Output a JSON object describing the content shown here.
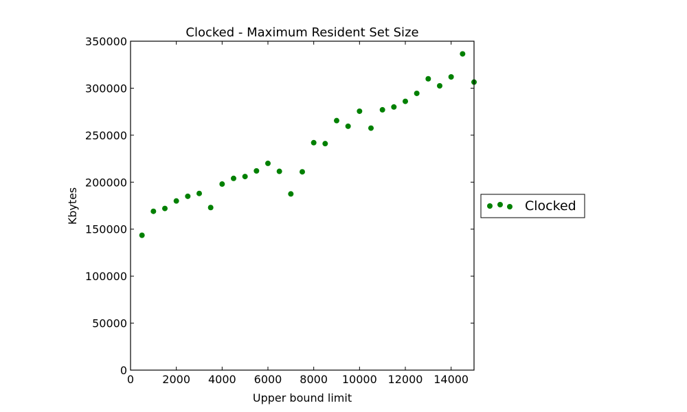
{
  "chart_data": {
    "type": "scatter",
    "title": "Clocked - Maximum Resident Set Size",
    "xlabel": "Upper bound limit",
    "ylabel": "Kbytes",
    "xlim": [
      0,
      15000
    ],
    "ylim": [
      0,
      350000
    ],
    "xticks": [
      0,
      2000,
      4000,
      6000,
      8000,
      10000,
      12000,
      14000
    ],
    "xtick_labels": [
      "0",
      "2000",
      "4000",
      "6000",
      "8000",
      "10000",
      "12000",
      "14000"
    ],
    "yticks": [
      0,
      50000,
      100000,
      150000,
      200000,
      250000,
      300000,
      350000
    ],
    "ytick_labels": [
      "0",
      "50000",
      "100000",
      "150000",
      "200000",
      "250000",
      "300000",
      "350000"
    ],
    "grid": false,
    "legend_position": "outside-right",
    "series": [
      {
        "name": "Clocked",
        "color": "#008000",
        "marker": "circle",
        "x": [
          500,
          1000,
          1500,
          2000,
          2500,
          3000,
          3500,
          4000,
          4500,
          5000,
          5500,
          6000,
          6500,
          7000,
          7500,
          8000,
          8500,
          9000,
          9500,
          10000,
          10500,
          11000,
          11500,
          12000,
          12500,
          13000,
          13500,
          14000,
          14500,
          15000
        ],
        "y": [
          143500,
          169000,
          172000,
          180000,
          185000,
          188000,
          173000,
          198000,
          204000,
          206000,
          212000,
          220000,
          211500,
          187500,
          211000,
          242000,
          241000,
          265500,
          259500,
          275500,
          257500,
          277000,
          280000,
          286000,
          294500,
          310000,
          302500,
          312000,
          336500,
          306500
        ]
      }
    ]
  }
}
